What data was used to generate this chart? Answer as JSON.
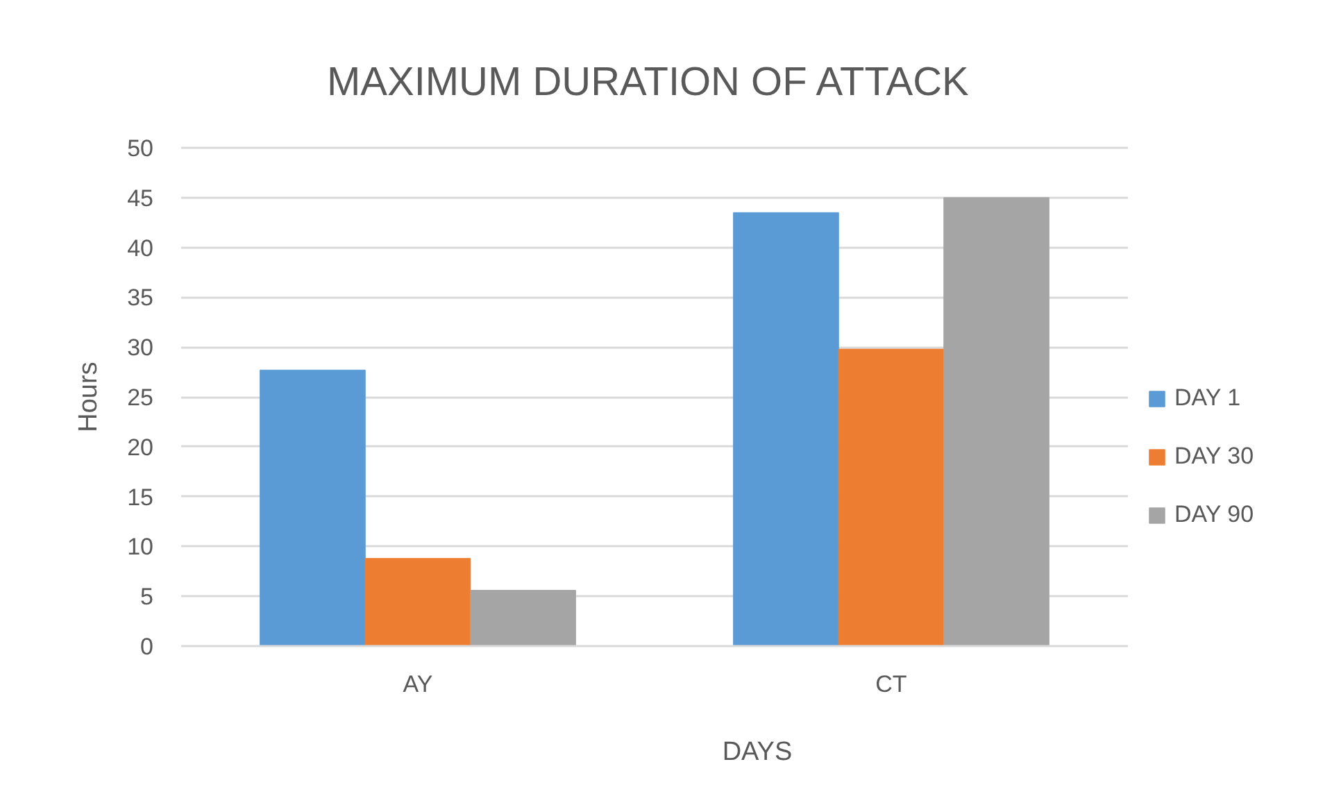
{
  "chart_data": {
    "type": "bar",
    "title": "MAXIMUM DURATION OF ATTACK",
    "xlabel": "DAYS",
    "ylabel": "Hours",
    "categories": [
      "AY",
      "CT"
    ],
    "series": [
      {
        "name": "DAY 1",
        "color": "#5b9bd5",
        "values": [
          27.7,
          43.5
        ]
      },
      {
        "name": "DAY 30",
        "color": "#ed7d31",
        "values": [
          8.8,
          29.8
        ]
      },
      {
        "name": "DAY 90",
        "color": "#a5a5a5",
        "values": [
          5.6,
          45
        ]
      }
    ],
    "ylim": [
      0,
      50
    ],
    "yticks": [
      0,
      5,
      10,
      15,
      20,
      25,
      30,
      35,
      40,
      45,
      50
    ],
    "grid": "y",
    "legend": "right"
  }
}
